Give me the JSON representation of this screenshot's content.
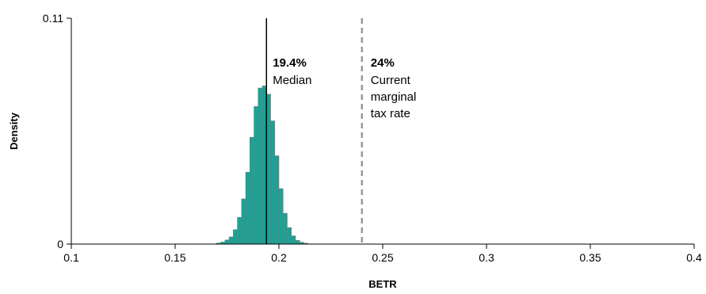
{
  "chart_data": {
    "type": "bar",
    "subtype": "histogram",
    "title": "",
    "xlabel": "BETR",
    "ylabel": "Density",
    "xlim": [
      0.1,
      0.4
    ],
    "ylim": [
      0,
      0.11
    ],
    "x_ticks": [
      "0.1",
      "0.15",
      "0.2",
      "0.25",
      "0.3",
      "0.35",
      "0.4"
    ],
    "y_ticks": [
      "0",
      "0.11"
    ],
    "grid": false,
    "bar_color": "#1aa396",
    "bar_edge_color": "#7a7a7a",
    "bin_width": 0.002,
    "bins": [
      {
        "x": 0.17,
        "y": 0.0005
      },
      {
        "x": 0.172,
        "y": 0.001
      },
      {
        "x": 0.174,
        "y": 0.002
      },
      {
        "x": 0.176,
        "y": 0.0035
      },
      {
        "x": 0.178,
        "y": 0.007
      },
      {
        "x": 0.18,
        "y": 0.013
      },
      {
        "x": 0.182,
        "y": 0.022
      },
      {
        "x": 0.184,
        "y": 0.035
      },
      {
        "x": 0.186,
        "y": 0.052
      },
      {
        "x": 0.188,
        "y": 0.067
      },
      {
        "x": 0.19,
        "y": 0.076
      },
      {
        "x": 0.192,
        "y": 0.077
      },
      {
        "x": 0.194,
        "y": 0.073
      },
      {
        "x": 0.196,
        "y": 0.06
      },
      {
        "x": 0.198,
        "y": 0.043
      },
      {
        "x": 0.2,
        "y": 0.027
      },
      {
        "x": 0.202,
        "y": 0.015
      },
      {
        "x": 0.204,
        "y": 0.008
      },
      {
        "x": 0.206,
        "y": 0.004
      },
      {
        "x": 0.208,
        "y": 0.0018
      },
      {
        "x": 0.21,
        "y": 0.0009
      },
      {
        "x": 0.212,
        "y": 0.0004
      }
    ],
    "median": {
      "x": 0.194,
      "value": "19.4%",
      "label": "Median",
      "color": "#000000"
    },
    "reference": {
      "x": 0.24,
      "value": "24%",
      "label_lines": [
        "Current",
        "marginal",
        "tax rate"
      ],
      "color": "#999999"
    }
  }
}
